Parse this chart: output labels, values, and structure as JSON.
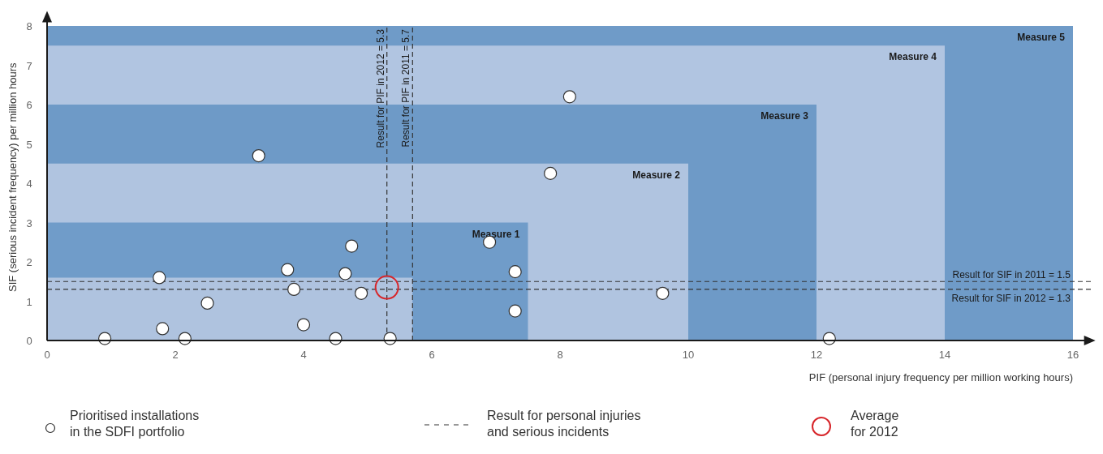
{
  "chart_data": {
    "type": "scatter",
    "xlabel": "PIF (personal injury frequency per million working hours)",
    "ylabel": "SIF (serious incident frequency) per million hours",
    "xlim": [
      0,
      16.3
    ],
    "ylim": [
      0,
      8.3
    ],
    "xticks": [
      0,
      2,
      4,
      6,
      8,
      10,
      12,
      14,
      16
    ],
    "yticks": [
      0,
      1,
      2,
      3,
      4,
      5,
      6,
      7,
      8
    ],
    "grid": false,
    "legend": "bottom",
    "series": [
      {
        "type": "area",
        "name": "Measure 5",
        "color": "#6f9bc8",
        "x": [
          0,
          16
        ],
        "values": [
          8,
          8
        ]
      },
      {
        "type": "area",
        "name": "Measure 4",
        "color": "#b1c5e1",
        "x": [
          0,
          14
        ],
        "values": [
          7.5,
          7.5
        ]
      },
      {
        "type": "area",
        "name": "Measure 3",
        "color": "#6e9ac7",
        "x": [
          0,
          12
        ],
        "values": [
          6,
          6
        ]
      },
      {
        "type": "area",
        "name": "Measure 2",
        "color": "#b0c4e0",
        "x": [
          0,
          10
        ],
        "values": [
          4.5,
          4.5
        ]
      },
      {
        "type": "area",
        "name": "Measure 1",
        "color": "#709cc9",
        "x": [
          0,
          7.5
        ],
        "values": [
          3,
          3
        ]
      },
      {
        "type": "area",
        "color": "#afc3df",
        "x": [
          0,
          5.7
        ],
        "values": [
          1.6,
          1.6
        ]
      },
      {
        "name": "Prioritised installations in the SDFI portfolio",
        "color": "#ffffff",
        "marker": "circle",
        "x": [
          0.9,
          1.8,
          1.75,
          2.15,
          2.5,
          3.3,
          3.75,
          3.85,
          4.0,
          4.5,
          4.65,
          4.75,
          4.9,
          5.35,
          6.9,
          7.3,
          7.3,
          7.85,
          8.15,
          9.6,
          12.2
        ],
        "values": [
          0.05,
          0.3,
          1.6,
          0.05,
          0.95,
          4.7,
          1.8,
          1.3,
          0.4,
          0.05,
          1.7,
          2.4,
          1.2,
          0.05,
          2.5,
          1.75,
          0.75,
          4.25,
          6.2,
          1.2,
          0.05
        ]
      },
      {
        "name": "Average for 2012",
        "color": "#d7262b",
        "marker": "circle",
        "x": [
          5.3
        ],
        "values": [
          1.35
        ]
      }
    ],
    "ref_lines": [
      {
        "axis": "x",
        "value": 5.3,
        "label": "Result for PIF in 2012 = 5.3",
        "line_style": "dashed",
        "color": "#333333"
      },
      {
        "axis": "x",
        "value": 5.7,
        "label": "Result for PIF in 2011 = 5.7",
        "line_style": "dashed",
        "color": "#333333"
      },
      {
        "axis": "y",
        "value": 1.5,
        "label": "Result for SIF in 2011 = 1.5",
        "line_style": "dashed",
        "color": "#333333"
      },
      {
        "axis": "y",
        "value": 1.3,
        "label": "Result for SIF in 2012 = 1.3",
        "line_style": "dashed",
        "color": "#333333"
      }
    ],
    "annotations": [
      "Result for personal injuries and serious incidents"
    ]
  }
}
